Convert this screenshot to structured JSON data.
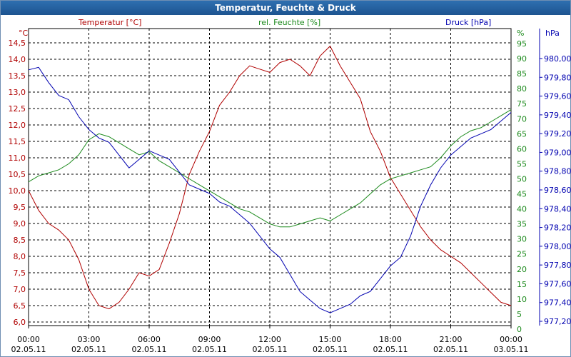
{
  "window": {
    "title": "Temperatur, Feuchte & Druck"
  },
  "chart_data": {
    "type": "line",
    "title": "Temperatur, Feuchte & Druck",
    "x_ticks": [
      {
        "time": "00:00",
        "date": "02.05.11"
      },
      {
        "time": "03:00",
        "date": "02.05.11"
      },
      {
        "time": "06:00",
        "date": "02.05.11"
      },
      {
        "time": "09:00",
        "date": "02.05.11"
      },
      {
        "time": "12:00",
        "date": "02.05.11"
      },
      {
        "time": "15:00",
        "date": "02.05.11"
      },
      {
        "time": "18:00",
        "date": "02.05.11"
      },
      {
        "time": "21:00",
        "date": "02.05.11"
      },
      {
        "time": "00:00",
        "date": "03.05.11"
      }
    ],
    "x_range_hours": [
      0,
      24
    ],
    "grid": true,
    "axes": {
      "temperature": {
        "label": "Temperatur [°C]",
        "unit": "°C",
        "color": "#b00000",
        "side": "left",
        "ylim": [
          6.0,
          14.5
        ],
        "ticks": [
          "14,5",
          "14,0",
          "13,5",
          "13,0",
          "12,5",
          "12,0",
          "11,5",
          "11,0",
          "10,5",
          "10,0",
          "9,5",
          "9,0",
          "8,5",
          "8,0",
          "7,5",
          "7,0",
          "6,5",
          "6,0"
        ]
      },
      "humidity": {
        "label": "rel. Feuchte [%]",
        "unit": "%",
        "color": "#1c8a1c",
        "side": "right-inner",
        "ylim": [
          0,
          95
        ],
        "ticks": [
          "95",
          "90",
          "85",
          "80",
          "75",
          "70",
          "65",
          "60",
          "55",
          "50",
          "45",
          "40",
          "35",
          "30",
          "25",
          "20",
          "15",
          "10",
          "5",
          "0"
        ]
      },
      "pressure": {
        "label": "Druck [hPa]",
        "unit": "hPa",
        "color": "#0000b0",
        "side": "right-outer",
        "ylim": [
          977.2,
          980.4
        ],
        "ticks": [
          "980,00",
          "979,80",
          "979,60",
          "979,40",
          "979,20",
          "979,00",
          "978,80",
          "978,60",
          "978,40",
          "978,20",
          "978,00",
          "977,80",
          "977,60",
          "977,40",
          "977,20"
        ]
      }
    },
    "series": [
      {
        "name": "Temperatur [°C]",
        "axis": "temperature",
        "color": "#b00000",
        "x": [
          0,
          0.5,
          1,
          1.5,
          2,
          2.5,
          3,
          3.5,
          4,
          4.5,
          5,
          5.5,
          6,
          6.5,
          7,
          7.5,
          8,
          8.5,
          9,
          9.5,
          10,
          10.5,
          11,
          11.5,
          12,
          12.5,
          13,
          13.5,
          14,
          14.5,
          15,
          15.5,
          16,
          16.5,
          17,
          17.5,
          18,
          18.5,
          19,
          19.5,
          20,
          20.5,
          21,
          21.5,
          22,
          22.5,
          23,
          23.5,
          24
        ],
        "values": [
          10.0,
          9.4,
          9.0,
          8.8,
          8.5,
          7.9,
          7.0,
          6.5,
          6.4,
          6.6,
          7.0,
          7.5,
          7.4,
          7.6,
          8.4,
          9.3,
          10.5,
          11.2,
          11.8,
          12.6,
          13.0,
          13.5,
          13.8,
          13.7,
          13.6,
          13.9,
          14.0,
          13.8,
          13.5,
          14.1,
          14.4,
          13.8,
          13.3,
          12.8,
          11.8,
          11.2,
          10.4,
          9.9,
          9.4,
          8.9,
          8.5,
          8.2,
          8.0,
          7.8,
          7.5,
          7.2,
          6.9,
          6.6,
          6.5
        ]
      },
      {
        "name": "rel. Feuchte [%]",
        "axis": "humidity",
        "color": "#1c8a1c",
        "x": [
          0,
          0.5,
          1,
          1.5,
          2,
          2.5,
          3,
          3.5,
          4,
          4.5,
          5,
          5.5,
          6,
          6.5,
          7,
          7.5,
          8,
          8.5,
          9,
          9.5,
          10,
          10.5,
          11,
          11.5,
          12,
          12.5,
          13,
          13.5,
          14,
          14.5,
          15,
          15.5,
          16,
          16.5,
          17,
          17.5,
          18,
          18.5,
          19,
          19.5,
          20,
          20.5,
          21,
          21.5,
          22,
          22.5,
          23,
          23.5,
          24
        ],
        "values": [
          49,
          51,
          52,
          53,
          55,
          58,
          63,
          65,
          64,
          62,
          60,
          58,
          59,
          56,
          54,
          52,
          50,
          48,
          46,
          44,
          42,
          40,
          39,
          37,
          35,
          34,
          34,
          35,
          36,
          37,
          36,
          38,
          40,
          42,
          45,
          48,
          50,
          51,
          52,
          53,
          54,
          57,
          61,
          64,
          66,
          67,
          69,
          71,
          73
        ]
      },
      {
        "name": "Druck [hPa]",
        "axis": "pressure",
        "color": "#0000b0",
        "x": [
          0,
          0.5,
          1,
          1.5,
          2,
          2.5,
          3,
          3.5,
          4,
          4.5,
          5,
          5.5,
          6,
          6.5,
          7,
          7.5,
          8,
          8.5,
          9,
          9.5,
          10,
          10.5,
          11,
          11.5,
          12,
          12.5,
          13,
          13.5,
          14,
          14.5,
          15,
          15.5,
          16,
          16.5,
          17,
          17.5,
          18,
          18.5,
          19,
          19.5,
          20,
          20.5,
          21,
          21.5,
          22,
          22.5,
          23,
          23.5,
          24
        ],
        "values": [
          980.15,
          980.18,
          980.0,
          979.85,
          979.8,
          979.6,
          979.45,
          979.35,
          979.3,
          979.15,
          979.0,
          979.1,
          979.2,
          979.15,
          979.1,
          978.95,
          978.8,
          978.75,
          978.7,
          978.6,
          978.55,
          978.45,
          978.35,
          978.2,
          978.05,
          977.95,
          977.75,
          977.55,
          977.45,
          977.35,
          977.3,
          977.35,
          977.4,
          977.5,
          977.55,
          977.7,
          977.85,
          977.95,
          978.2,
          978.55,
          978.8,
          979.0,
          979.15,
          979.25,
          979.35,
          979.4,
          979.45,
          979.55,
          979.65
        ]
      }
    ]
  }
}
